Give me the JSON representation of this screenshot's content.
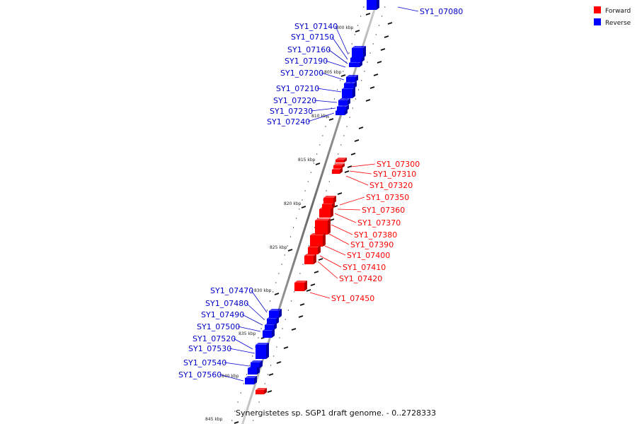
{
  "caption": "Synergistetes sp. SGP1 draft genome. - 0..2728333",
  "legend": [
    {
      "label": "Forward",
      "color": "#ff0000"
    },
    {
      "label": "Reverse",
      "color": "#0000ff"
    }
  ],
  "tick_labels": [
    "800 kbp",
    "805 kbp",
    "810 kbp",
    "815 kbp",
    "820 kbp",
    "825 kbp",
    "830 kbp",
    "835 kbp",
    "840 kbp",
    "845 kbp"
  ],
  "genes": [
    {
      "name": "SY1_07080",
      "strand": "reverse"
    },
    {
      "name": "SY1_07140",
      "strand": "reverse"
    },
    {
      "name": "SY1_07150",
      "strand": "reverse"
    },
    {
      "name": "SY1_07160",
      "strand": "reverse"
    },
    {
      "name": "SY1_07190",
      "strand": "reverse"
    },
    {
      "name": "SY1_07200",
      "strand": "reverse"
    },
    {
      "name": "SY1_07210",
      "strand": "reverse"
    },
    {
      "name": "SY1_07220",
      "strand": "reverse"
    },
    {
      "name": "SY1_07230",
      "strand": "reverse"
    },
    {
      "name": "SY1_07240",
      "strand": "reverse"
    },
    {
      "name": "SY1_07300",
      "strand": "forward"
    },
    {
      "name": "SY1_07310",
      "strand": "forward"
    },
    {
      "name": "SY1_07320",
      "strand": "forward"
    },
    {
      "name": "SY1_07350",
      "strand": "forward"
    },
    {
      "name": "SY1_07360",
      "strand": "forward"
    },
    {
      "name": "SY1_07370",
      "strand": "forward"
    },
    {
      "name": "SY1_07380",
      "strand": "forward"
    },
    {
      "name": "SY1_07390",
      "strand": "forward"
    },
    {
      "name": "SY1_07400",
      "strand": "forward"
    },
    {
      "name": "SY1_07410",
      "strand": "forward"
    },
    {
      "name": "SY1_07420",
      "strand": "forward"
    },
    {
      "name": "SY1_07450",
      "strand": "forward"
    },
    {
      "name": "SY1_07470",
      "strand": "reverse"
    },
    {
      "name": "SY1_07480",
      "strand": "reverse"
    },
    {
      "name": "SY1_07490",
      "strand": "reverse"
    },
    {
      "name": "SY1_07500",
      "strand": "reverse"
    },
    {
      "name": "SY1_07520",
      "strand": "reverse"
    },
    {
      "name": "SY1_07530",
      "strand": "reverse"
    },
    {
      "name": "SY1_07540",
      "strand": "reverse"
    },
    {
      "name": "SY1_07560",
      "strand": "reverse"
    }
  ]
}
